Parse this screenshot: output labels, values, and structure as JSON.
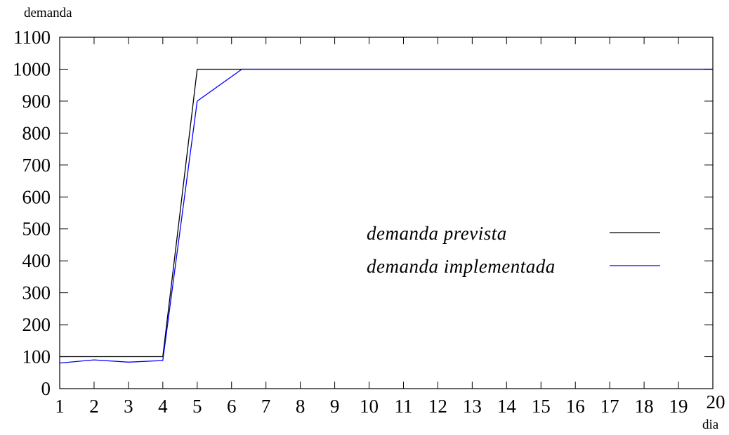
{
  "chart_data": {
    "type": "line",
    "ylabel": "demanda",
    "xlabel": "dia",
    "x": [
      1,
      2,
      3,
      4,
      5,
      6,
      7,
      8,
      9,
      10,
      11,
      12,
      13,
      14,
      15,
      16,
      17,
      18,
      19,
      20
    ],
    "x_tick_labels": [
      "1",
      "2",
      "3",
      "4",
      "5",
      "6",
      "7",
      "8",
      "9",
      "10",
      "11",
      "12",
      "13",
      "14",
      "15",
      "16",
      "17",
      "18",
      "19",
      "20"
    ],
    "y_tick_labels": [
      "0",
      "100",
      "200",
      "300",
      "400",
      "500",
      "600",
      "700",
      "800",
      "900",
      "1000",
      "1100"
    ],
    "y_ticks": [
      0,
      100,
      200,
      300,
      400,
      500,
      600,
      700,
      800,
      900,
      1000,
      1100
    ],
    "xlim": [
      1,
      20
    ],
    "ylim": [
      0,
      1100
    ],
    "grid": false,
    "legend_position": "center-right",
    "series": [
      {
        "name": "demanda prevista",
        "color": "#000000",
        "points": [
          [
            1,
            100
          ],
          [
            2,
            100
          ],
          [
            3,
            100
          ],
          [
            4,
            100
          ],
          [
            5,
            1000
          ],
          [
            6,
            1000
          ],
          [
            7,
            1000
          ],
          [
            8,
            1000
          ],
          [
            9,
            1000
          ],
          [
            10,
            1000
          ],
          [
            11,
            1000
          ],
          [
            12,
            1000
          ],
          [
            13,
            1000
          ],
          [
            14,
            1000
          ],
          [
            15,
            1000
          ],
          [
            16,
            1000
          ],
          [
            17,
            1000
          ],
          [
            18,
            1000
          ],
          [
            19,
            1000
          ],
          [
            20,
            1000
          ]
        ]
      },
      {
        "name": "demanda implementada",
        "color": "#0000ff",
        "points": [
          [
            1,
            80
          ],
          [
            2,
            90
          ],
          [
            3,
            83
          ],
          [
            4,
            88
          ],
          [
            5,
            900
          ],
          [
            6.3,
            1000
          ],
          [
            7,
            1000
          ],
          [
            8,
            1000
          ],
          [
            9,
            1000
          ],
          [
            10,
            1000
          ],
          [
            11,
            1000
          ],
          [
            12,
            1000
          ],
          [
            13,
            1000
          ],
          [
            14,
            1000
          ],
          [
            15,
            1000
          ],
          [
            16,
            1000
          ],
          [
            17,
            1000
          ],
          [
            18,
            1000
          ],
          [
            19,
            1000
          ],
          [
            20,
            1000
          ]
        ]
      }
    ]
  }
}
